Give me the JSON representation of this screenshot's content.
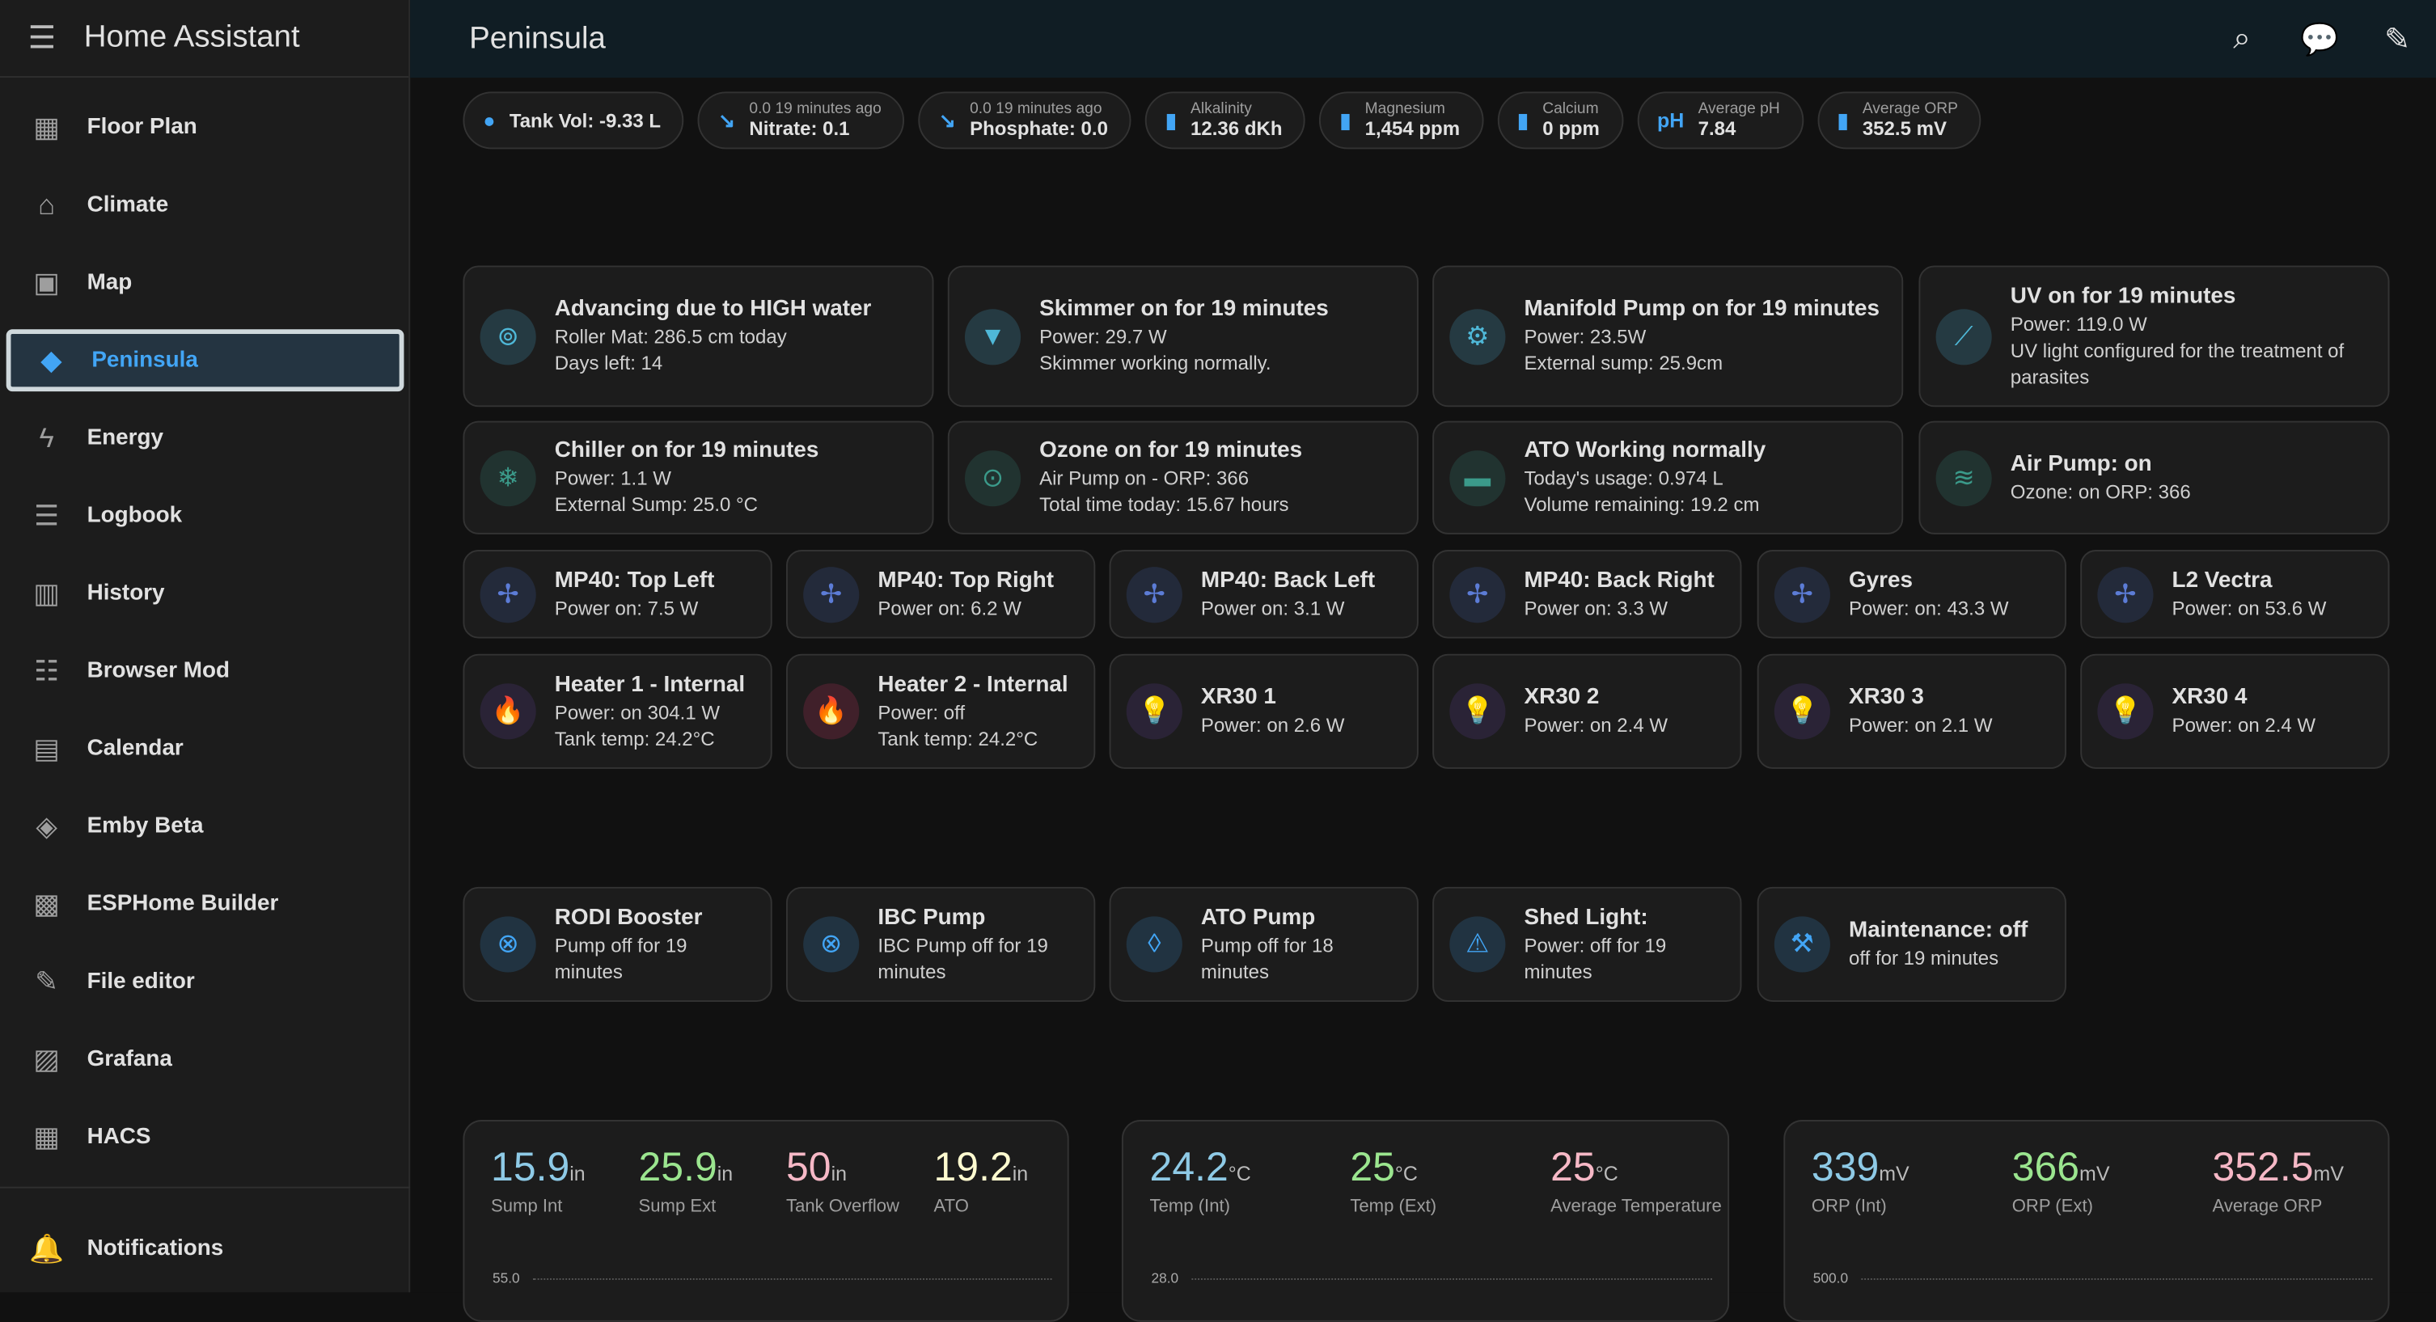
{
  "app": {
    "title": "Home Assistant"
  },
  "sidebar": {
    "items": [
      {
        "label": "Floor Plan",
        "icon": "floor-plan-icon",
        "g": "▦"
      },
      {
        "label": "Climate",
        "icon": "home-thermometer-icon",
        "g": "⌂"
      },
      {
        "label": "Map",
        "icon": "map-icon",
        "g": "▣"
      },
      {
        "label": "Peninsula",
        "icon": "fish-icon",
        "g": "◆",
        "active": true
      },
      {
        "label": "Energy",
        "icon": "lightning-icon",
        "g": "ϟ"
      },
      {
        "label": "Logbook",
        "icon": "list-icon",
        "g": "☰"
      },
      {
        "label": "History",
        "icon": "chart-box-icon",
        "g": "▥"
      },
      {
        "label": "Browser Mod",
        "icon": "server-icon",
        "g": "☷"
      },
      {
        "label": "Calendar",
        "icon": "calendar-icon",
        "g": "▤"
      },
      {
        "label": "Emby Beta",
        "icon": "emby-icon",
        "g": "◈"
      },
      {
        "label": "ESPHome Builder",
        "icon": "chip-icon",
        "g": "▩"
      },
      {
        "label": "File editor",
        "icon": "wrench-icon",
        "g": "✎"
      },
      {
        "label": "Grafana",
        "icon": "chart-timeline-icon",
        "g": "▨"
      },
      {
        "label": "HACS",
        "icon": "hacs-icon",
        "g": "▦"
      }
    ],
    "notifications": "Notifications"
  },
  "header": {
    "title": "Peninsula"
  },
  "badges": [
    {
      "label": "",
      "value": "Tank Vol: -9.33 L",
      "icon": "water-drop-icon",
      "g": "●"
    },
    {
      "label": "0.0 19 minutes ago",
      "value": "Nitrate: 0.1",
      "icon": "trend-down-icon",
      "g": "↘"
    },
    {
      "label": "0.0 19 minutes ago",
      "value": "Phosphate: 0.0",
      "icon": "trend-down-icon",
      "g": "↘"
    },
    {
      "label": "Alkalinity",
      "value": "12.36 dKh",
      "icon": "test-tube-icon",
      "g": "▮"
    },
    {
      "label": "Magnesium",
      "value": "1,454 ppm",
      "icon": "test-tube-icon",
      "g": "▮"
    },
    {
      "label": "Calcium",
      "value": "0 ppm",
      "icon": "test-tube-icon",
      "g": "▮"
    },
    {
      "label": "Average pH",
      "value": "7.84",
      "icon": "ph-icon",
      "g": "pH"
    },
    {
      "label": "Average ORP",
      "value": "352.5 mV",
      "icon": "test-tube-icon",
      "g": "▮"
    }
  ],
  "colors": {
    "teal": "#4fb8d8",
    "tealBg": "#253a42",
    "green": "#3b9a8a",
    "greenBg": "#213330",
    "purple": "#6f42c1",
    "purpleBg": "#2a2336",
    "pink": "#e0336a",
    "pinkBg": "#40202a",
    "blue": "#42a5f5",
    "blueBg": "#213341",
    "fan": "#5c7cd6",
    "fanBg": "#232a3a"
  },
  "tiles": [
    {
      "name": "Advancing due to HIGH water",
      "lines": [
        "Roller Mat: 286.5 cm today",
        "Days left: 14"
      ],
      "icon": "paper-roll-icon",
      "g": "⊚",
      "c": "teal"
    },
    {
      "name": "Skimmer on for 19 minutes",
      "lines": [
        "Power: 29.7 W",
        "Skimmer working normally."
      ],
      "icon": "cup-icon",
      "g": "▼",
      "c": "teal"
    },
    {
      "name": "Manifold Pump on for 19 minutes",
      "lines": [
        "Power: 23.5W",
        "External sump: 25.9cm"
      ],
      "icon": "pump-icon",
      "g": "⚙",
      "c": "teal"
    },
    {
      "name": "UV on for 19 minutes",
      "lines": [
        "Power: 119.0 W",
        "UV light configured for the treatment of parasites"
      ],
      "icon": "uv-tube-icon",
      "g": "⟋",
      "c": "teal"
    },
    {
      "name": "Chiller on for 19 minutes",
      "lines": [
        "Power: 1.1 W",
        "External Sump: 25.0 °C"
      ],
      "icon": "snowflake-icon",
      "g": "❄",
      "c": "green"
    },
    {
      "name": "Ozone on for 19 minutes",
      "lines": [
        "Air Pump on  -  ORP: 366",
        "Total time today: 15.67 hours"
      ],
      "icon": "ozone-icon",
      "g": "⊙",
      "c": "green"
    },
    {
      "name": "ATO Working normally",
      "lines": [
        "Today's usage: 0.974 L",
        "Volume remaining: 19.2 cm"
      ],
      "icon": "water-tank-icon",
      "g": "▬",
      "c": "green"
    },
    {
      "name": "Air Pump: on",
      "lines": [
        "Ozone: on   ORP: 366"
      ],
      "icon": "air-filter-icon",
      "g": "≋",
      "c": "green"
    },
    {
      "name": "MP40: Top Left",
      "lines": [
        "Power on: 7.5 W"
      ],
      "icon": "fan-icon",
      "g": "✢",
      "c": "fan"
    },
    {
      "name": "MP40: Top Right",
      "lines": [
        "Power on: 6.2 W"
      ],
      "icon": "fan-icon",
      "g": "✢",
      "c": "fan"
    },
    {
      "name": "MP40: Back Left",
      "lines": [
        "Power on: 3.1 W"
      ],
      "icon": "fan-icon",
      "g": "✢",
      "c": "fan"
    },
    {
      "name": "MP40: Back Right",
      "lines": [
        "Power on: 3.3 W"
      ],
      "icon": "fan-icon",
      "g": "✢",
      "c": "fan"
    },
    {
      "name": "Gyres",
      "lines": [
        "Power: on: 43.3 W"
      ],
      "icon": "fan-icon",
      "g": "✢",
      "c": "fan"
    },
    {
      "name": "L2 Vectra",
      "lines": [
        "Power: on 53.6 W"
      ],
      "icon": "fan-icon",
      "g": "✢",
      "c": "fan"
    },
    {
      "name": "Heater 1 - Internal",
      "lines": [
        "Power: on 304.1 W",
        "Tank temp: 24.2°C"
      ],
      "icon": "fire-icon",
      "g": "🔥",
      "c": "purple"
    },
    {
      "name": "Heater 2 - Internal",
      "lines": [
        "Power: off",
        "Tank temp: 24.2°C"
      ],
      "icon": "fire-icon",
      "g": "🔥",
      "c": "pink"
    },
    {
      "name": "XR30 1",
      "lines": [
        "Power: on 2.6 W"
      ],
      "icon": "lightbulb-icon",
      "g": "💡",
      "c": "purple"
    },
    {
      "name": "XR30 2",
      "lines": [
        "Power: on 2.4 W"
      ],
      "icon": "lightbulb-icon",
      "g": "💡",
      "c": "purple"
    },
    {
      "name": "XR30 3",
      "lines": [
        "Power: on 2.1 W"
      ],
      "icon": "lightbulb-icon",
      "g": "💡",
      "c": "purple"
    },
    {
      "name": "XR30 4",
      "lines": [
        "Power: on 2.4 W"
      ],
      "icon": "lightbulb-icon",
      "g": "💡",
      "c": "purple"
    },
    {
      "name": "RODI Booster",
      "lines": [
        "Pump off for 19",
        "minutes"
      ],
      "icon": "pump-off-icon",
      "g": "⊗",
      "c": "blue"
    },
    {
      "name": "IBC Pump",
      "lines": [
        "IBC Pump off for 19",
        "minutes"
      ],
      "icon": "pump-off-icon",
      "g": "⊗",
      "c": "blue"
    },
    {
      "name": "ATO Pump",
      "lines": [
        "Pump off for 18",
        "minutes"
      ],
      "icon": "water-outline-icon",
      "g": "◊",
      "c": "blue"
    },
    {
      "name": "Shed Light:",
      "lines": [
        "Power: off for 19",
        "minutes"
      ],
      "icon": "alert-icon",
      "g": "⚠",
      "c": "blue"
    },
    {
      "name": "Maintenance: off",
      "lines": [
        "off for 19 minutes"
      ],
      "icon": "tools-clock-icon",
      "g": "⚒",
      "c": "blue"
    }
  ],
  "stat_cards": [
    {
      "entities": [
        {
          "value": "15.9",
          "unit": "in",
          "name": "Sump Int",
          "color": "#8ecae6"
        },
        {
          "value": "25.9",
          "unit": "in",
          "name": "Sump Ext",
          "color": "#9be58f"
        },
        {
          "value": "50",
          "unit": "in",
          "name": "Tank Overflow",
          "color": "#f6b8c6"
        },
        {
          "value": "19.2",
          "unit": "in",
          "name": "ATO",
          "color": "#fffbd0"
        }
      ],
      "axis_top": "55.0"
    },
    {
      "entities": [
        {
          "value": "24.2",
          "unit": "°C",
          "name": "Temp (Int)",
          "color": "#8ecae6"
        },
        {
          "value": "25",
          "unit": "°C",
          "name": "Temp (Ext)",
          "color": "#9be58f"
        },
        {
          "value": "25",
          "unit": "°C",
          "name": "Average Temperature",
          "color": "#f6b8c6"
        }
      ],
      "axis_top": "28.0"
    },
    {
      "entities": [
        {
          "value": "339",
          "unit": "mV",
          "name": "ORP (Int)",
          "color": "#8ecae6"
        },
        {
          "value": "366",
          "unit": "mV",
          "name": "ORP (Ext)",
          "color": "#9be58f"
        },
        {
          "value": "352.5",
          "unit": "mV",
          "name": "Average ORP",
          "color": "#f6b8c6"
        }
      ],
      "axis_top": "500.0"
    }
  ]
}
